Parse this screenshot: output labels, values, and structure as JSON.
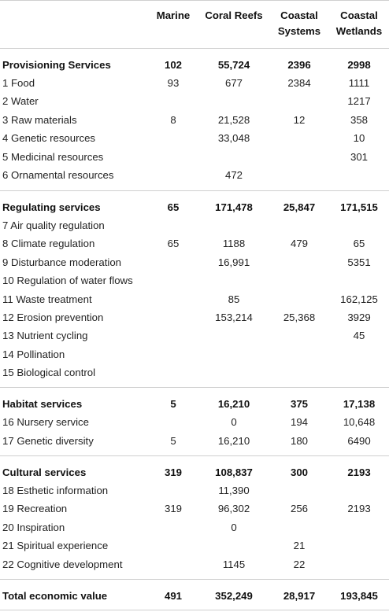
{
  "columns": [
    "Marine",
    "Coral Reefs",
    "Coastal Systems",
    "Coastal Wetlands"
  ],
  "header_lines": [
    [
      "Marine"
    ],
    [
      "Coral Reefs"
    ],
    [
      "Coastal",
      "Systems"
    ],
    [
      "Coastal",
      "Wetlands"
    ]
  ],
  "sections": [
    {
      "label": "Provisioning Services",
      "values": [
        "102",
        "55,724",
        "2396",
        "2998"
      ],
      "rows": [
        {
          "label": "1 Food",
          "values": [
            "93",
            "677",
            "2384",
            "1111"
          ]
        },
        {
          "label": "2 Water",
          "values": [
            "",
            "",
            "",
            "1217"
          ]
        },
        {
          "label": "3 Raw materials",
          "values": [
            "8",
            "21,528",
            "12",
            "358"
          ]
        },
        {
          "label": "4 Genetic resources",
          "values": [
            "",
            "33,048",
            "",
            "10"
          ]
        },
        {
          "label": "5 Medicinal resources",
          "values": [
            "",
            "",
            "",
            "301"
          ]
        },
        {
          "label": "6 Ornamental resources",
          "values": [
            "",
            "472",
            "",
            ""
          ]
        }
      ]
    },
    {
      "label": "Regulating services",
      "values": [
        "65",
        "171,478",
        "25,847",
        "171,515"
      ],
      "rows": [
        {
          "label": "7 Air quality regulation",
          "values": [
            "",
            "",
            "",
            ""
          ]
        },
        {
          "label": "8 Climate regulation",
          "values": [
            "65",
            "1188",
            "479",
            "65"
          ]
        },
        {
          "label": "9 Disturbance moderation",
          "values": [
            "",
            "16,991",
            "",
            "5351"
          ]
        },
        {
          "label": "10 Regulation of water flows",
          "values": [
            "",
            "",
            "",
            ""
          ]
        },
        {
          "label": "11 Waste treatment",
          "values": [
            "",
            "85",
            "",
            "162,125"
          ]
        },
        {
          "label": "12 Erosion prevention",
          "values": [
            "",
            "153,214",
            "25,368",
            "3929"
          ]
        },
        {
          "label": "13 Nutrient cycling",
          "values": [
            "",
            "",
            "",
            "45"
          ]
        },
        {
          "label": "14 Pollination",
          "values": [
            "",
            "",
            "",
            ""
          ]
        },
        {
          "label": "15 Biological control",
          "values": [
            "",
            "",
            "",
            ""
          ]
        }
      ]
    },
    {
      "label": "Habitat services",
      "values": [
        "5",
        "16,210",
        "375",
        "17,138"
      ],
      "rows": [
        {
          "label": "16 Nursery service",
          "values": [
            "",
            "0",
            "194",
            "10,648"
          ]
        },
        {
          "label": "17 Genetic diversity",
          "values": [
            "5",
            "16,210",
            "180",
            "6490"
          ]
        }
      ]
    },
    {
      "label": "Cultural services",
      "values": [
        "319",
        "108,837",
        "300",
        "2193"
      ],
      "rows": [
        {
          "label": "18 Esthetic information",
          "values": [
            "",
            "11,390",
            "",
            ""
          ]
        },
        {
          "label": "19 Recreation",
          "values": [
            "319",
            "96,302",
            "256",
            "2193"
          ]
        },
        {
          "label": "20 Inspiration",
          "values": [
            "",
            "0",
            "",
            ""
          ]
        },
        {
          "label": "21 Spiritual experience",
          "values": [
            "",
            "",
            "21",
            ""
          ]
        },
        {
          "label": "22 Cognitive development",
          "values": [
            "",
            "1145",
            "22",
            ""
          ]
        }
      ]
    }
  ],
  "total": {
    "label": "Total economic value",
    "values": [
      "491",
      "352,249",
      "28,917",
      "193,845"
    ]
  }
}
